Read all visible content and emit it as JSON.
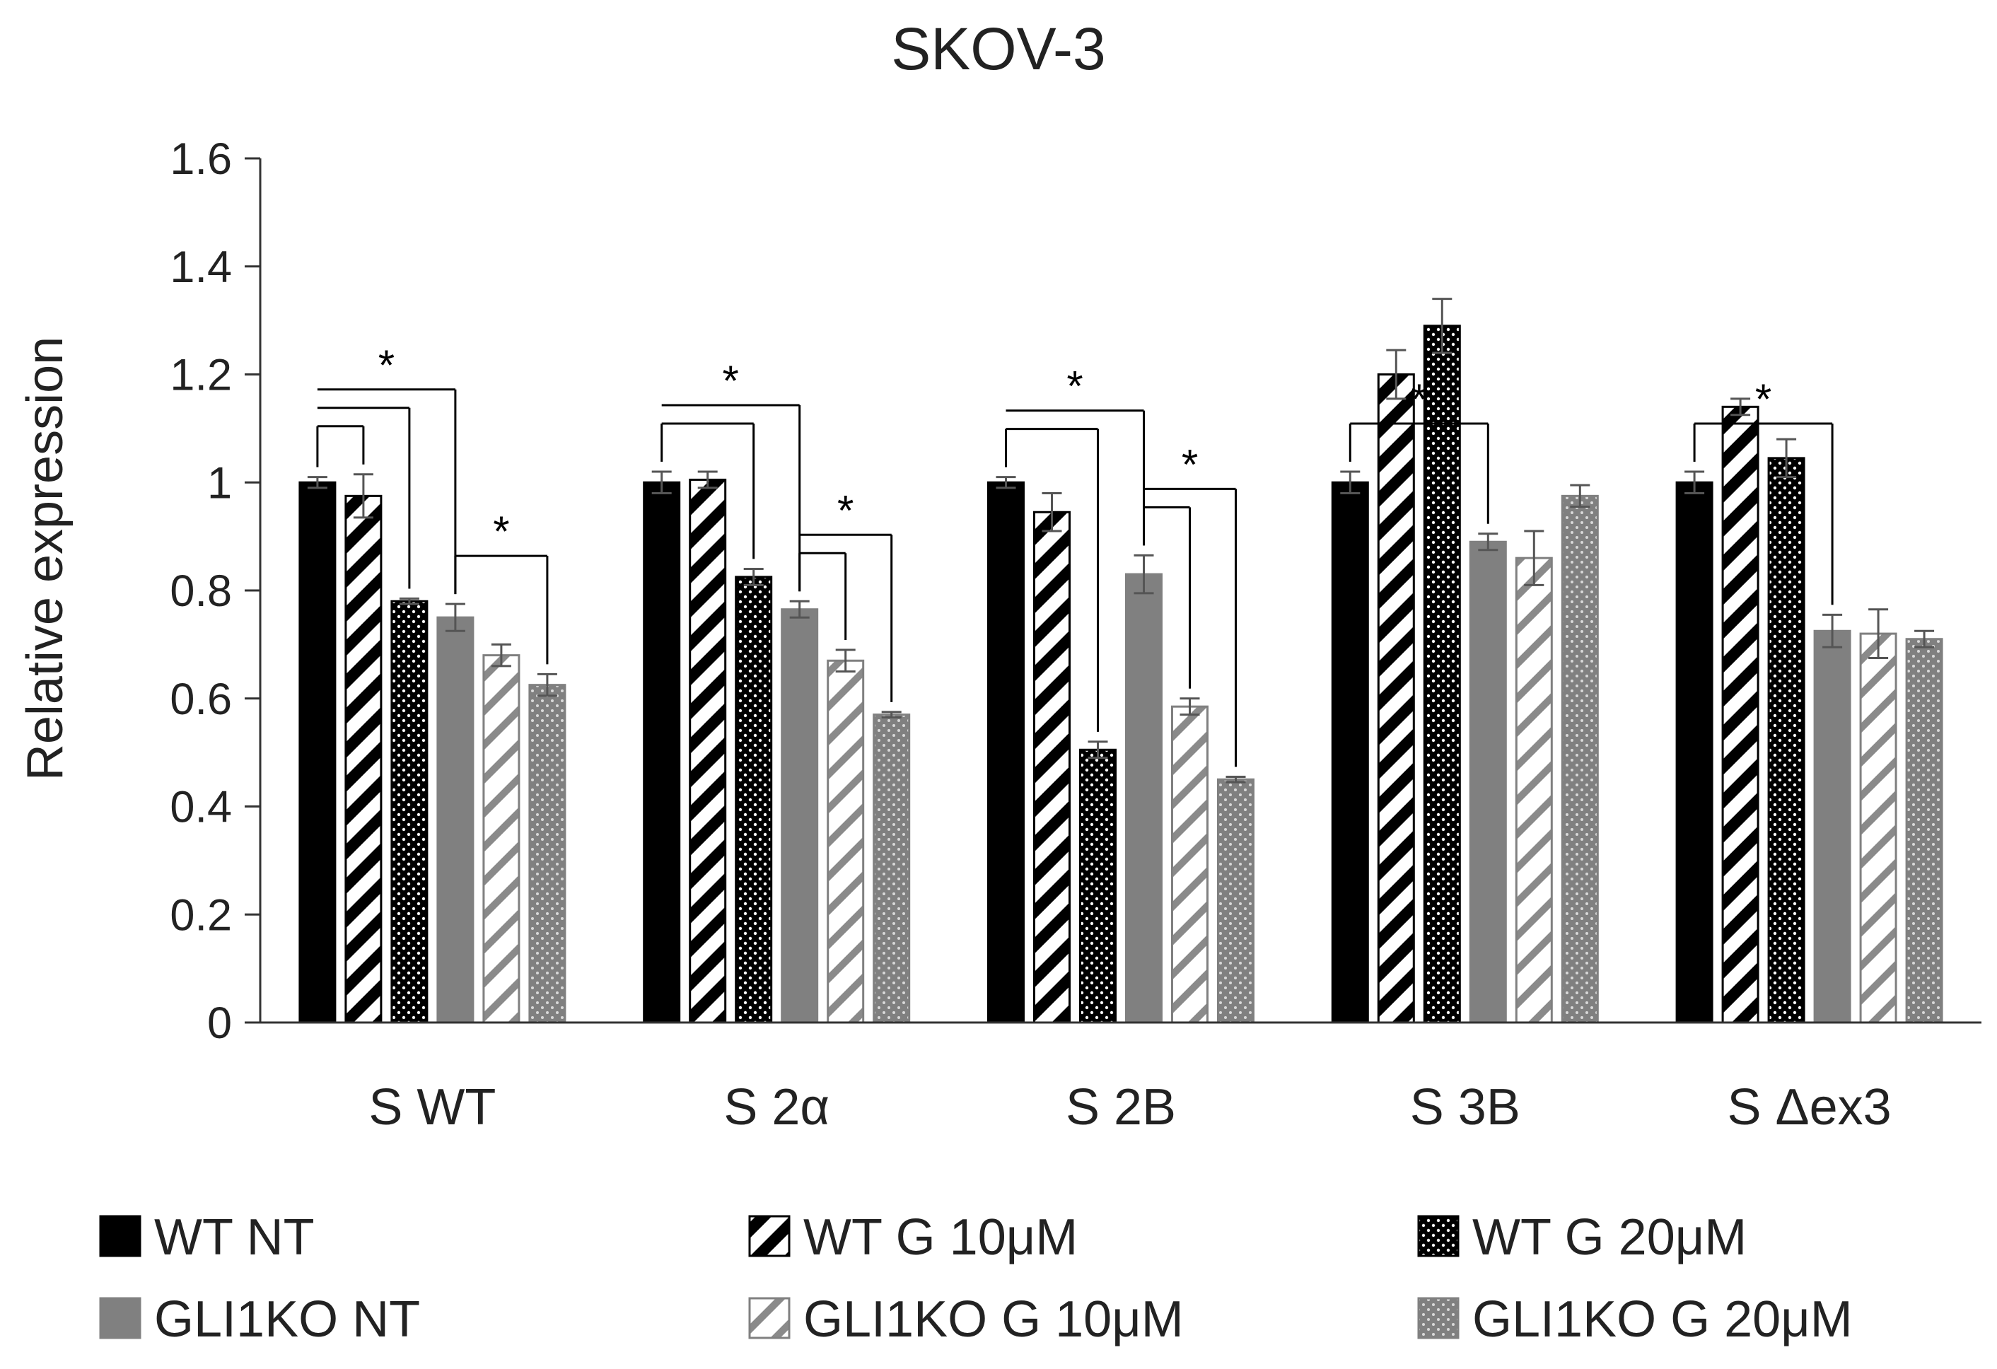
{
  "chart_data": {
    "type": "bar",
    "title": "SKOV-3",
    "xlabel": "",
    "ylabel": "Relative expression",
    "ylim": [
      0,
      1.6
    ],
    "yticks": [
      0,
      0.2,
      0.4,
      0.6,
      0.8,
      1,
      1.2,
      1.4,
      1.6
    ],
    "ytick_labels": [
      "0",
      "0.2",
      "0.4",
      "0.6",
      "0.8",
      "1",
      "1.2",
      "1.4",
      "1.6"
    ],
    "categories": [
      "S WT",
      "S 2α",
      "S 2B",
      "S 3B",
      "S Δex3"
    ],
    "legend_position": "bottom",
    "series": [
      {
        "name": "WT NT",
        "fill": "solid",
        "color": "#000000",
        "values": [
          1.0,
          1.0,
          1.0,
          1.0,
          1.0
        ],
        "errors": [
          0.01,
          0.02,
          0.01,
          0.02,
          0.02
        ]
      },
      {
        "name": "WT G 10μM",
        "fill": "hatch-dark",
        "color": "#000000",
        "values": [
          0.975,
          1.005,
          0.945,
          1.2,
          1.14
        ],
        "errors": [
          0.04,
          0.015,
          0.035,
          0.045,
          0.015
        ]
      },
      {
        "name": "WT G 20μM",
        "fill": "dots-dark",
        "color": "#000000",
        "values": [
          0.78,
          0.825,
          0.505,
          1.29,
          1.045
        ],
        "errors": [
          0.005,
          0.015,
          0.015,
          0.05,
          0.035
        ]
      },
      {
        "name": "GLI1KO NT",
        "fill": "solid",
        "color": "#808080",
        "values": [
          0.75,
          0.765,
          0.83,
          0.89,
          0.725
        ],
        "errors": [
          0.025,
          0.015,
          0.035,
          0.015,
          0.03
        ]
      },
      {
        "name": "GLI1KO G 10μM",
        "fill": "hatch-gray",
        "color": "#808080",
        "values": [
          0.68,
          0.67,
          0.585,
          0.86,
          0.72
        ],
        "errors": [
          0.02,
          0.02,
          0.015,
          0.05,
          0.045
        ]
      },
      {
        "name": "GLI1KO G 20μM",
        "fill": "dots-gray",
        "color": "#808080",
        "values": [
          0.625,
          0.57,
          0.45,
          0.975,
          0.71
        ],
        "errors": [
          0.02,
          0.005,
          0.005,
          0.02,
          0.015
        ]
      }
    ],
    "significance": [
      {
        "category": 0,
        "from": 0,
        "to": [
          1,
          2,
          3
        ],
        "label": "*"
      },
      {
        "category": 0,
        "from": 3,
        "to": [
          5
        ],
        "label": "*"
      },
      {
        "category": 1,
        "from": 0,
        "to": [
          2,
          3
        ],
        "label": "*"
      },
      {
        "category": 1,
        "from": 3,
        "to": [
          4,
          5
        ],
        "label": "*"
      },
      {
        "category": 2,
        "from": 0,
        "to": [
          2,
          3
        ],
        "label": "*"
      },
      {
        "category": 2,
        "from": 3,
        "to": [
          4,
          5
        ],
        "label": "*"
      },
      {
        "category": 3,
        "from": 0,
        "to": [
          3
        ],
        "label": "*"
      },
      {
        "category": 4,
        "from": 0,
        "to": [
          3
        ],
        "label": "*"
      }
    ]
  }
}
